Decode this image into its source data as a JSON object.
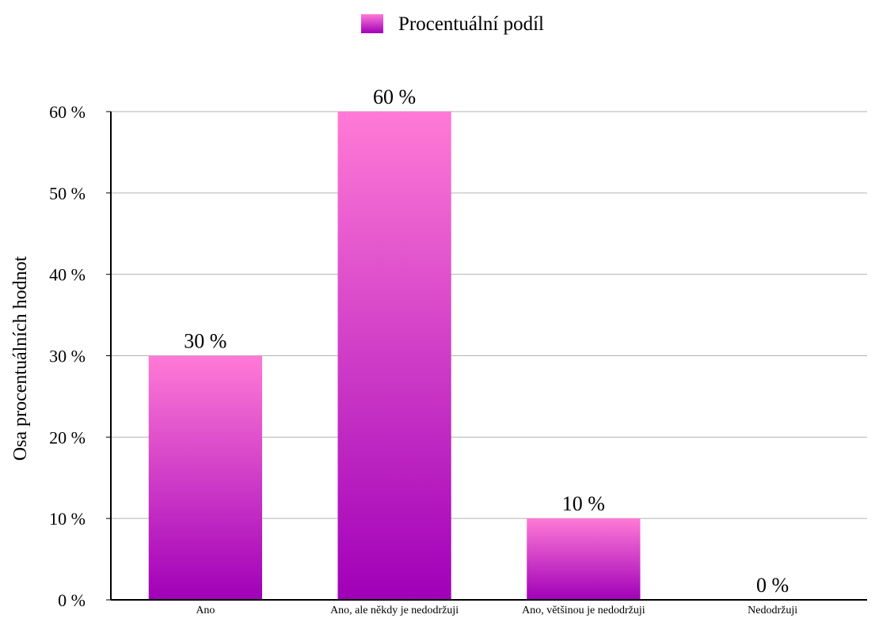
{
  "chart_data": {
    "type": "bar",
    "categories": [
      "Ano",
      "Ano, ale někdy je nedodržuji",
      "Ano, většinou je nedodržuji",
      "Nedodržuji"
    ],
    "series": [
      {
        "name": "Procentuální podíl",
        "values": [
          30,
          60,
          10,
          0
        ]
      }
    ],
    "data_labels": [
      "30 %",
      "60 %",
      "10 %",
      "0 %"
    ],
    "ylabel": "Osa procentuálních hodnot",
    "xlabel": "",
    "ylim": [
      0,
      60
    ],
    "yticks": [
      0,
      10,
      20,
      30,
      40,
      50,
      60
    ],
    "ytick_labels": [
      "0 %",
      "10 %",
      "20 %",
      "30 %",
      "40 %",
      "50 %",
      "60 %"
    ],
    "grid": "horizontal",
    "legend_position": "top",
    "colors": {
      "bar_top": "#ff7ad6",
      "bar_bottom": "#a000b8",
      "grid": "#b3b3b3",
      "axis": "#000000"
    }
  }
}
